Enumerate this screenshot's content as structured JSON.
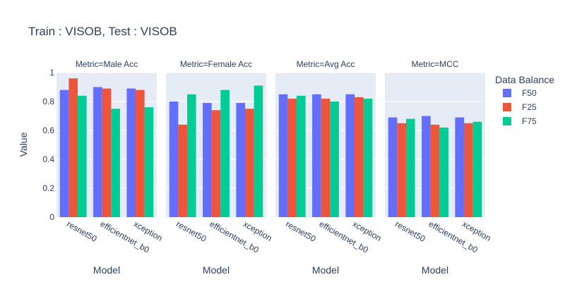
{
  "chart_data": {
    "type": "bar",
    "title": "Train : VISOB, Test : VISOB",
    "ylabel": "Value",
    "xlabel": "Model",
    "ylim": [
      0,
      1
    ],
    "yticks": [
      0,
      0.2,
      0.4,
      0.6,
      0.8,
      1
    ],
    "ytick_labels": [
      "0",
      "0.2",
      "0.4",
      "0.6",
      "0.8",
      "1"
    ],
    "categories": [
      "resnet50",
      "efficientnet_b0",
      "xception"
    ],
    "legend": {
      "title": "Data Balance",
      "position": "right"
    },
    "series_colors": {
      "F50": "#636efa",
      "F25": "#ef553b",
      "F75": "#00cc96"
    },
    "facet_bg": "#e5ecf6",
    "grid": true,
    "facets": [
      {
        "title": "Metric=Male Acc",
        "series": [
          {
            "name": "F50",
            "values": [
              0.88,
              0.9,
              0.89
            ]
          },
          {
            "name": "F25",
            "values": [
              0.96,
              0.89,
              0.88
            ]
          },
          {
            "name": "F75",
            "values": [
              0.84,
              0.75,
              0.76
            ]
          }
        ]
      },
      {
        "title": "Metric=Female Acc",
        "series": [
          {
            "name": "F50",
            "values": [
              0.8,
              0.79,
              0.79
            ]
          },
          {
            "name": "F25",
            "values": [
              0.64,
              0.74,
              0.75
            ]
          },
          {
            "name": "F75",
            "values": [
              0.85,
              0.88,
              0.91
            ]
          }
        ]
      },
      {
        "title": "Metric=Avg Acc",
        "series": [
          {
            "name": "F50",
            "values": [
              0.85,
              0.85,
              0.85
            ]
          },
          {
            "name": "F25",
            "values": [
              0.82,
              0.82,
              0.83
            ]
          },
          {
            "name": "F75",
            "values": [
              0.84,
              0.8,
              0.82
            ]
          }
        ]
      },
      {
        "title": "Metric=MCC",
        "series": [
          {
            "name": "F50",
            "values": [
              0.69,
              0.7,
              0.69
            ]
          },
          {
            "name": "F25",
            "values": [
              0.65,
              0.64,
              0.65
            ]
          },
          {
            "name": "F75",
            "values": [
              0.68,
              0.62,
              0.66
            ]
          }
        ]
      }
    ]
  }
}
